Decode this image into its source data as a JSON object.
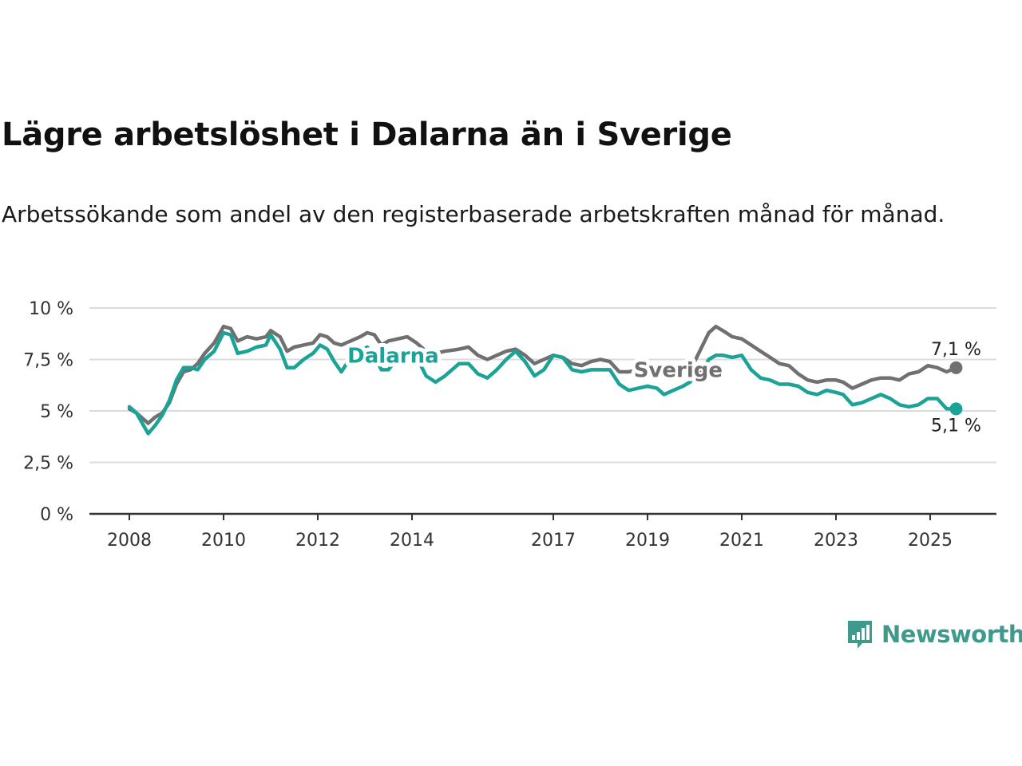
{
  "title": "Lägre arbetslöshet i Dalarna än i Sverige",
  "subtitle": "Arbetssökande som andel av den registerbaserade arbetskraften månad för månad.",
  "logo": {
    "text": "Newsworthy",
    "icon": "newsworthy-chart-logo-icon"
  },
  "colors": {
    "dalarna": "#1aa396",
    "sverige": "#707070",
    "grid": "#dcdcdc",
    "axis": "#333333"
  },
  "chart_data": {
    "type": "line",
    "xlabel": "",
    "ylabel": "",
    "ylim": [
      0,
      10
    ],
    "yticks": [
      0,
      2.5,
      5,
      7.5,
      10
    ],
    "ytick_labels": [
      "0 %",
      "2,5 %",
      "5 %",
      "7,5 %",
      "10 %"
    ],
    "xlim": [
      2008.0,
      2025.92
    ],
    "xticks": [
      2008,
      2010,
      2012,
      2014,
      2017,
      2019,
      2021,
      2023,
      2025
    ],
    "xtick_labels": [
      "2008",
      "2010",
      "2012",
      "2014",
      "2017",
      "2019",
      "2021",
      "2023",
      "2025"
    ],
    "grid": true,
    "legend": "direct-labels",
    "series": [
      {
        "name": "Sverige",
        "color": "#707070",
        "end_label": "7,1 %",
        "points": [
          [
            2008.0,
            5.1
          ],
          [
            2008.15,
            4.9
          ],
          [
            2008.3,
            4.6
          ],
          [
            2008.4,
            4.4
          ],
          [
            2008.55,
            4.7
          ],
          [
            2008.7,
            4.9
          ],
          [
            2008.85,
            5.4
          ],
          [
            2009.0,
            6.3
          ],
          [
            2009.15,
            6.9
          ],
          [
            2009.3,
            7.0
          ],
          [
            2009.45,
            7.3
          ],
          [
            2009.6,
            7.8
          ],
          [
            2009.8,
            8.3
          ],
          [
            2010.0,
            9.1
          ],
          [
            2010.15,
            9.0
          ],
          [
            2010.3,
            8.4
          ],
          [
            2010.5,
            8.6
          ],
          [
            2010.7,
            8.5
          ],
          [
            2010.9,
            8.6
          ],
          [
            2011.0,
            8.9
          ],
          [
            2011.2,
            8.6
          ],
          [
            2011.35,
            7.9
          ],
          [
            2011.5,
            8.1
          ],
          [
            2011.7,
            8.2
          ],
          [
            2011.9,
            8.3
          ],
          [
            2012.05,
            8.7
          ],
          [
            2012.2,
            8.6
          ],
          [
            2012.35,
            8.3
          ],
          [
            2012.5,
            8.2
          ],
          [
            2012.7,
            8.4
          ],
          [
            2012.9,
            8.6
          ],
          [
            2013.05,
            8.8
          ],
          [
            2013.2,
            8.7
          ],
          [
            2013.35,
            8.2
          ],
          [
            2013.5,
            8.4
          ],
          [
            2013.7,
            8.5
          ],
          [
            2013.9,
            8.6
          ],
          [
            2014.1,
            8.3
          ],
          [
            2014.3,
            7.9
          ],
          [
            2014.5,
            7.8
          ],
          [
            2014.7,
            7.9
          ],
          [
            2015.0,
            8.0
          ],
          [
            2015.2,
            8.1
          ],
          [
            2015.4,
            7.7
          ],
          [
            2015.6,
            7.5
          ],
          [
            2015.8,
            7.7
          ],
          [
            2016.0,
            7.9
          ],
          [
            2016.2,
            8.0
          ],
          [
            2016.4,
            7.7
          ],
          [
            2016.6,
            7.3
          ],
          [
            2016.8,
            7.5
          ],
          [
            2017.0,
            7.7
          ],
          [
            2017.2,
            7.6
          ],
          [
            2017.4,
            7.3
          ],
          [
            2017.6,
            7.2
          ],
          [
            2017.8,
            7.4
          ],
          [
            2018.0,
            7.5
          ],
          [
            2018.2,
            7.4
          ],
          [
            2018.4,
            6.9
          ],
          [
            2018.6,
            6.9
          ],
          [
            2018.8,
            7.0
          ],
          [
            2019.0,
            7.1
          ],
          [
            2019.2,
            7.0
          ],
          [
            2019.4,
            6.9
          ],
          [
            2019.6,
            7.1
          ],
          [
            2019.8,
            7.3
          ],
          [
            2020.0,
            7.4
          ],
          [
            2020.15,
            8.1
          ],
          [
            2020.3,
            8.8
          ],
          [
            2020.45,
            9.1
          ],
          [
            2020.6,
            8.9
          ],
          [
            2020.8,
            8.6
          ],
          [
            2021.0,
            8.5
          ],
          [
            2021.2,
            8.2
          ],
          [
            2021.4,
            7.9
          ],
          [
            2021.6,
            7.6
          ],
          [
            2021.8,
            7.3
          ],
          [
            2022.0,
            7.2
          ],
          [
            2022.2,
            6.8
          ],
          [
            2022.4,
            6.5
          ],
          [
            2022.6,
            6.4
          ],
          [
            2022.8,
            6.5
          ],
          [
            2023.0,
            6.5
          ],
          [
            2023.15,
            6.4
          ],
          [
            2023.35,
            6.1
          ],
          [
            2023.55,
            6.3
          ],
          [
            2023.75,
            6.5
          ],
          [
            2023.95,
            6.6
          ],
          [
            2024.15,
            6.6
          ],
          [
            2024.35,
            6.5
          ],
          [
            2024.55,
            6.8
          ],
          [
            2024.75,
            6.9
          ],
          [
            2024.95,
            7.2
          ],
          [
            2025.15,
            7.1
          ],
          [
            2025.35,
            6.9
          ],
          [
            2025.55,
            7.1
          ]
        ]
      },
      {
        "name": "Dalarna",
        "color": "#1aa396",
        "end_label": "5,1 %",
        "points": [
          [
            2008.0,
            5.2
          ],
          [
            2008.15,
            4.9
          ],
          [
            2008.3,
            4.3
          ],
          [
            2008.4,
            3.9
          ],
          [
            2008.55,
            4.3
          ],
          [
            2008.7,
            4.8
          ],
          [
            2008.85,
            5.5
          ],
          [
            2009.0,
            6.5
          ],
          [
            2009.15,
            7.1
          ],
          [
            2009.3,
            7.1
          ],
          [
            2009.45,
            7.0
          ],
          [
            2009.6,
            7.5
          ],
          [
            2009.8,
            7.9
          ],
          [
            2010.0,
            8.8
          ],
          [
            2010.15,
            8.7
          ],
          [
            2010.3,
            7.8
          ],
          [
            2010.5,
            7.9
          ],
          [
            2010.7,
            8.1
          ],
          [
            2010.9,
            8.2
          ],
          [
            2011.0,
            8.7
          ],
          [
            2011.2,
            8.0
          ],
          [
            2011.35,
            7.1
          ],
          [
            2011.5,
            7.1
          ],
          [
            2011.7,
            7.5
          ],
          [
            2011.9,
            7.8
          ],
          [
            2012.05,
            8.2
          ],
          [
            2012.2,
            8.0
          ],
          [
            2012.35,
            7.4
          ],
          [
            2012.5,
            6.9
          ],
          [
            2012.7,
            7.6
          ],
          [
            2012.9,
            7.9
          ],
          [
            2013.05,
            8.1
          ],
          [
            2013.2,
            7.7
          ],
          [
            2013.35,
            7.0
          ],
          [
            2013.5,
            7.0
          ],
          [
            2013.7,
            7.6
          ],
          [
            2013.9,
            7.8
          ],
          [
            2014.1,
            7.6
          ],
          [
            2014.3,
            6.7
          ],
          [
            2014.5,
            6.4
          ],
          [
            2014.7,
            6.7
          ],
          [
            2015.0,
            7.3
          ],
          [
            2015.2,
            7.3
          ],
          [
            2015.4,
            6.8
          ],
          [
            2015.6,
            6.6
          ],
          [
            2015.8,
            7.0
          ],
          [
            2016.0,
            7.5
          ],
          [
            2016.2,
            7.9
          ],
          [
            2016.4,
            7.4
          ],
          [
            2016.6,
            6.7
          ],
          [
            2016.8,
            7.0
          ],
          [
            2017.0,
            7.7
          ],
          [
            2017.2,
            7.6
          ],
          [
            2017.4,
            7.0
          ],
          [
            2017.6,
            6.9
          ],
          [
            2017.8,
            7.0
          ],
          [
            2018.0,
            7.0
          ],
          [
            2018.2,
            7.0
          ],
          [
            2018.4,
            6.3
          ],
          [
            2018.6,
            6.0
          ],
          [
            2018.8,
            6.1
          ],
          [
            2019.0,
            6.2
          ],
          [
            2019.2,
            6.1
          ],
          [
            2019.35,
            5.8
          ],
          [
            2019.55,
            6.0
          ],
          [
            2019.75,
            6.2
          ],
          [
            2019.9,
            6.4
          ],
          [
            2020.15,
            6.9
          ],
          [
            2020.3,
            7.5
          ],
          [
            2020.45,
            7.7
          ],
          [
            2020.6,
            7.7
          ],
          [
            2020.8,
            7.6
          ],
          [
            2021.0,
            7.7
          ],
          [
            2021.2,
            7.0
          ],
          [
            2021.4,
            6.6
          ],
          [
            2021.6,
            6.5
          ],
          [
            2021.8,
            6.3
          ],
          [
            2022.0,
            6.3
          ],
          [
            2022.2,
            6.2
          ],
          [
            2022.4,
            5.9
          ],
          [
            2022.6,
            5.8
          ],
          [
            2022.8,
            6.0
          ],
          [
            2023.0,
            5.9
          ],
          [
            2023.15,
            5.8
          ],
          [
            2023.35,
            5.3
          ],
          [
            2023.55,
            5.4
          ],
          [
            2023.75,
            5.6
          ],
          [
            2023.95,
            5.8
          ],
          [
            2024.15,
            5.6
          ],
          [
            2024.35,
            5.3
          ],
          [
            2024.55,
            5.2
          ],
          [
            2024.75,
            5.3
          ],
          [
            2024.95,
            5.6
          ],
          [
            2025.15,
            5.6
          ],
          [
            2025.35,
            5.1
          ],
          [
            2025.55,
            5.1
          ]
        ]
      }
    ]
  }
}
